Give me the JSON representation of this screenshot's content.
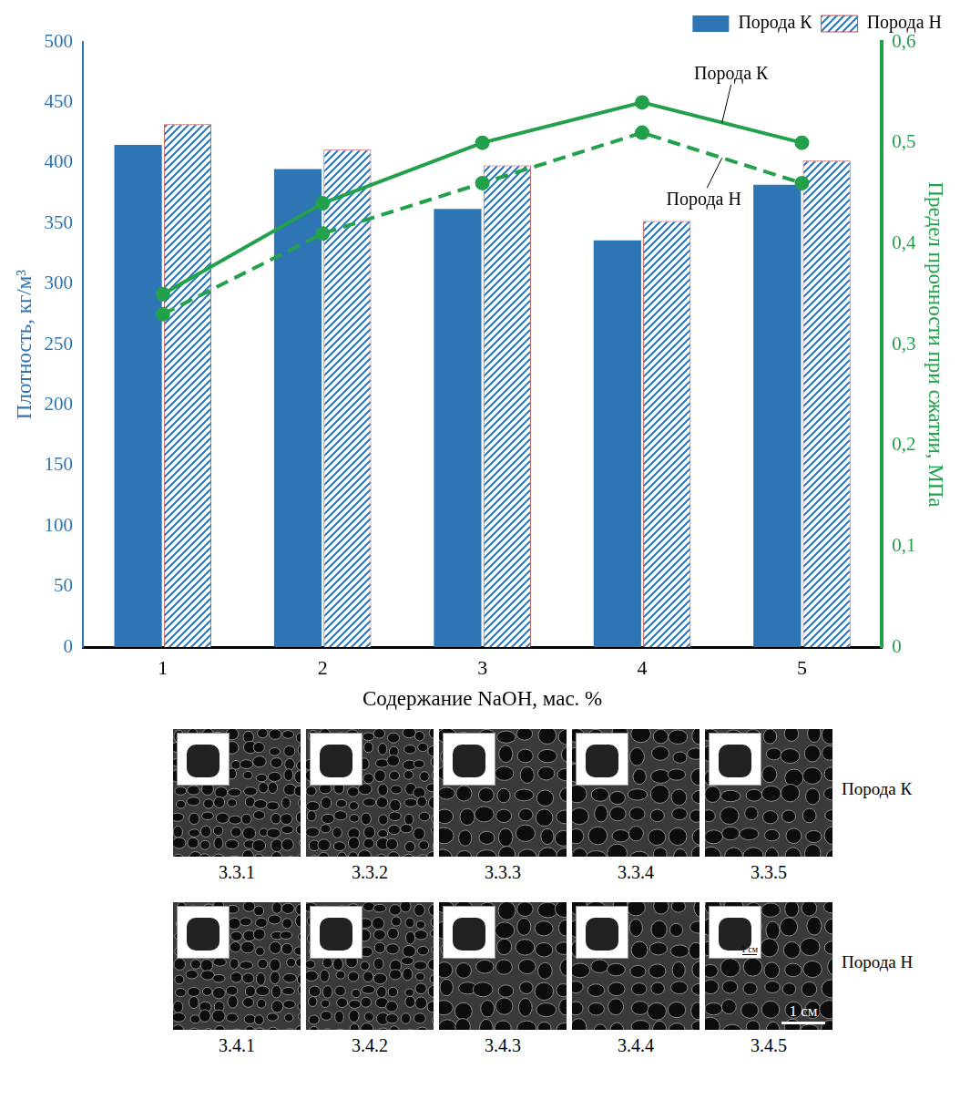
{
  "chart_data": {
    "type": "bar",
    "categories": [
      "1",
      "2",
      "3",
      "4",
      "5"
    ],
    "x_label": "Содержание NaOH, мас. %",
    "y_label": "Плотность, кг/м³",
    "y2_label": "Предел прочности при сжатии, МПа",
    "ylim": [
      0,
      500
    ],
    "yticks": [
      0,
      50,
      100,
      150,
      200,
      250,
      300,
      350,
      400,
      450,
      500
    ],
    "y2lim": [
      0,
      0.6
    ],
    "y2ticks": [
      0,
      {
        "value": 0.1,
        "label": "0,1"
      },
      {
        "value": 0.2,
        "label": "0,2"
      },
      {
        "value": 0.3,
        "label": "0,3"
      },
      {
        "value": 0.4,
        "label": "0,4"
      },
      {
        "value": 0.5,
        "label": "0,5"
      },
      {
        "value": 0.6,
        "label": "0,6"
      }
    ],
    "grid": false,
    "legend": "top",
    "series": [
      {
        "name": "Порода К",
        "type": "bar",
        "color": "#2e75b6",
        "values": [
          415,
          395,
          362,
          336,
          382
        ]
      },
      {
        "name": "Порода Н",
        "type": "bar",
        "color": "#2e75b6",
        "values": [
          432,
          411,
          398,
          352,
          402
        ]
      },
      {
        "name": "Порода К",
        "type": "line",
        "axis": "y2",
        "color": "#22a04b",
        "marker": "circle",
        "line_style": "solid",
        "values": [
          0.35,
          0.44,
          0.5,
          0.54,
          0.5
        ]
      },
      {
        "name": "Порода Н",
        "type": "line",
        "axis": "y2",
        "color": "#22a04b",
        "marker": "circle",
        "line_style": "dashed",
        "values": [
          0.33,
          0.41,
          0.46,
          0.51,
          0.46
        ]
      }
    ]
  },
  "micrographs": {
    "rows": [
      {
        "label": "Порода К",
        "panels": [
          "3.3.1",
          "3.3.2",
          "3.3.3",
          "3.3.4",
          "3.3.5"
        ]
      },
      {
        "label": "Порода Н",
        "panels": [
          "3.4.1",
          "3.4.2",
          "3.4.3",
          "3.4.4",
          "3.4.5"
        ]
      }
    ],
    "scale_bar": "1 см",
    "inset_scale_bar": "1 см"
  }
}
